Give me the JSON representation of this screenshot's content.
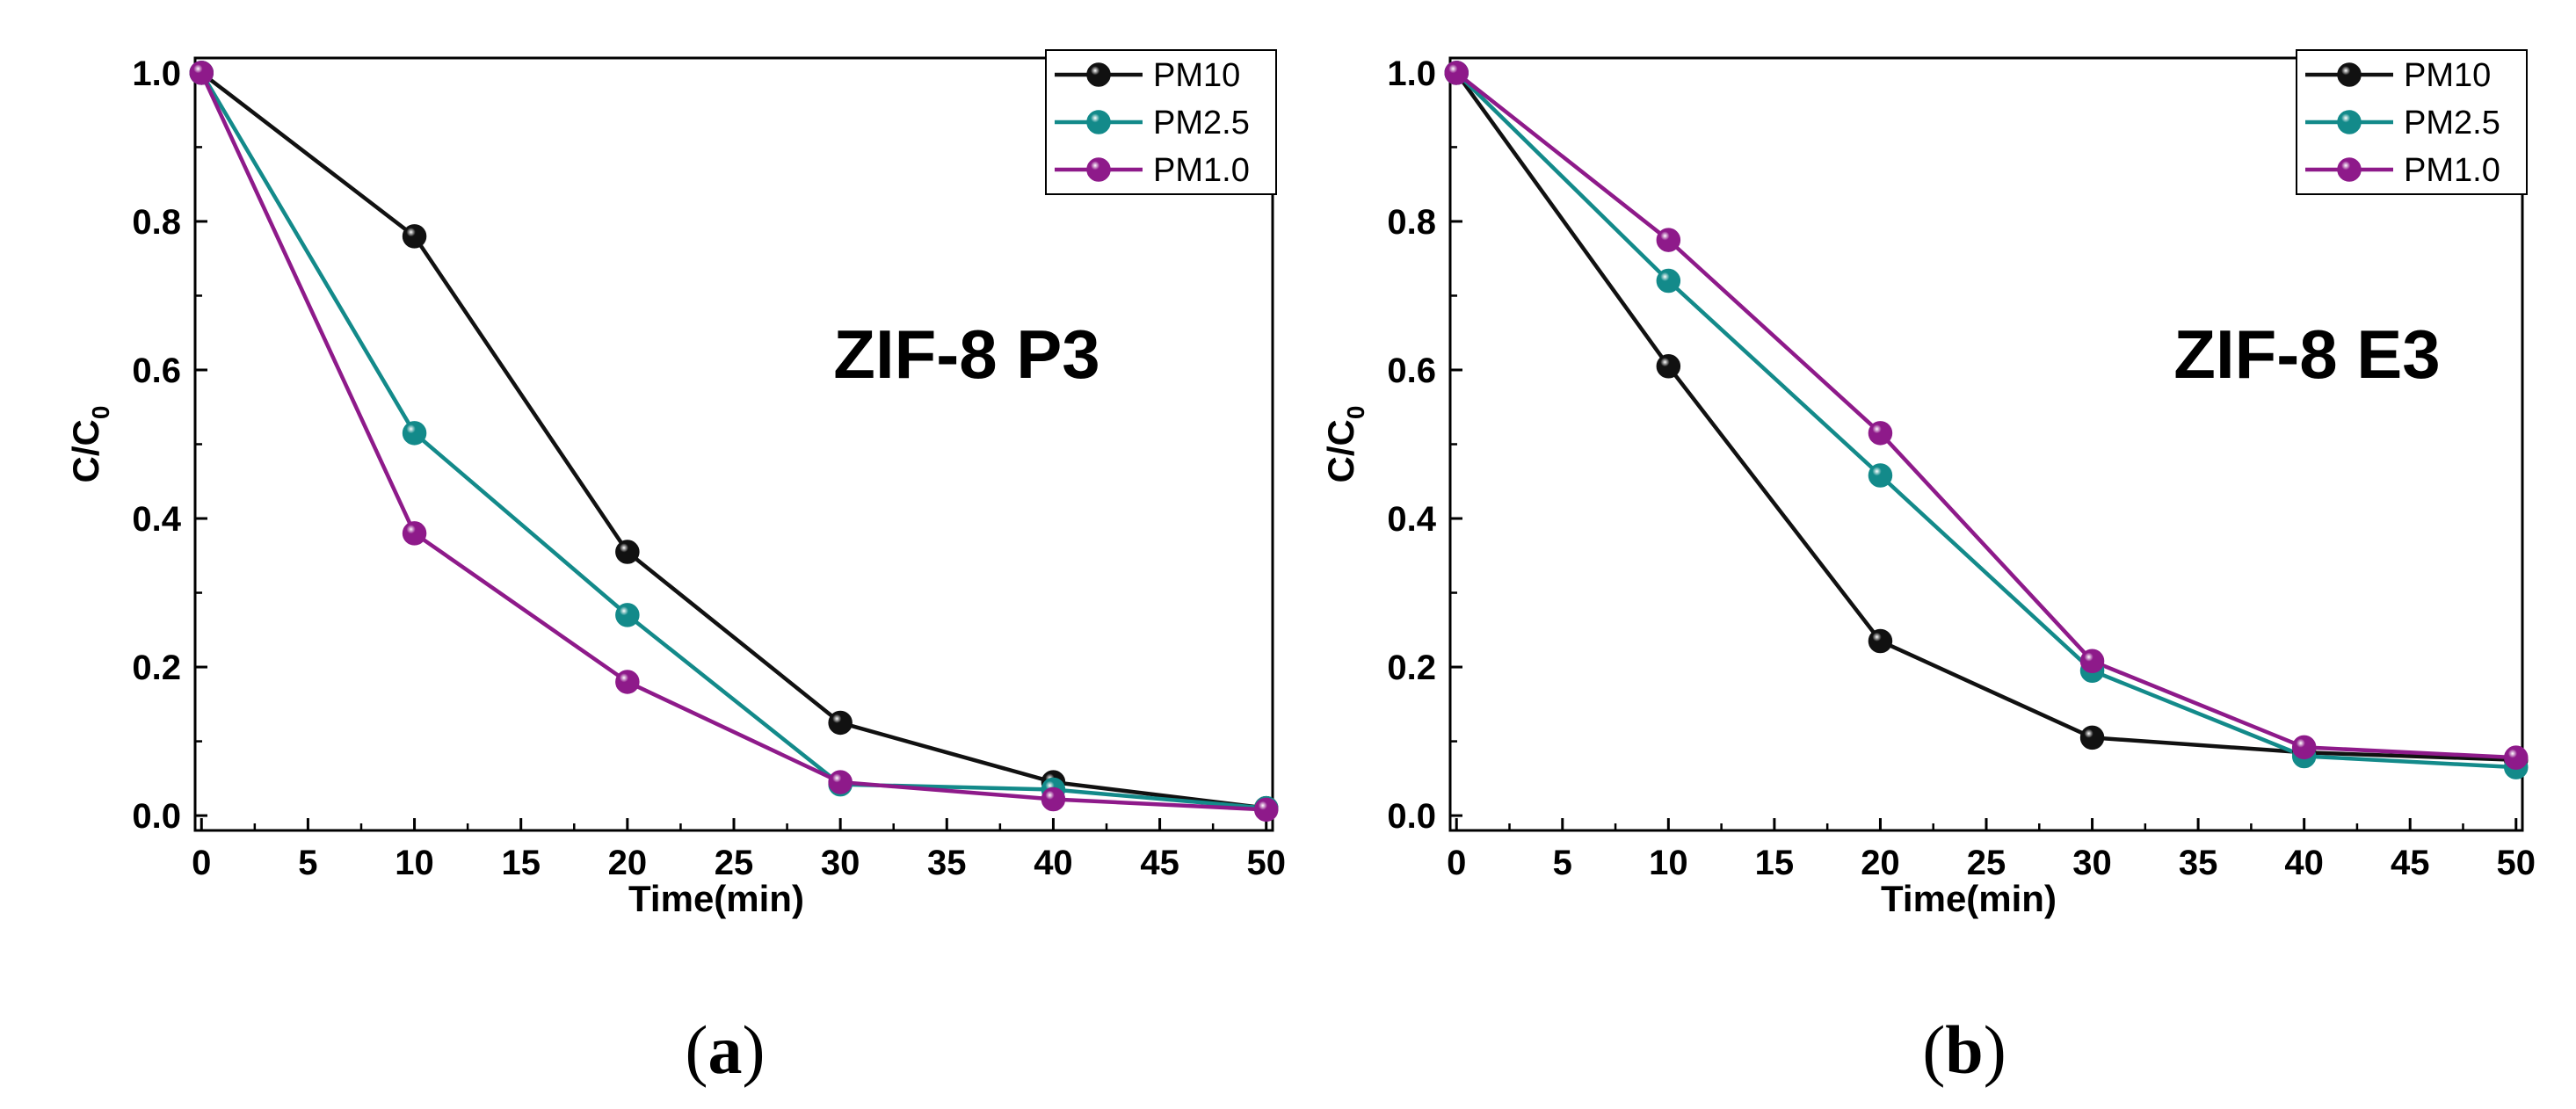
{
  "colors": {
    "PM10": "#111111",
    "PM2.5": "#138a8a",
    "PM1.0": "#8e1a8a"
  },
  "chart_data": [
    {
      "type": "line",
      "title": "ZIF-8 P3",
      "panel_label": "a",
      "xlabel": "Time(min)",
      "ylabel_main": "C/C",
      "ylabel_sub": "0",
      "xlim": [
        0,
        50
      ],
      "ylim": [
        0,
        1.0
      ],
      "xticks": [
        "0",
        "5",
        "10",
        "15",
        "20",
        "25",
        "30",
        "35",
        "40",
        "45",
        "50"
      ],
      "yticks": [
        "0.0",
        "0.2",
        "0.4",
        "0.6",
        "0.8",
        "1.0"
      ],
      "x": [
        0,
        10,
        20,
        30,
        40,
        50
      ],
      "legend_position": "top-right",
      "series": [
        {
          "name": "PM10",
          "values": [
            1.0,
            0.78,
            0.355,
            0.125,
            0.045,
            0.01
          ]
        },
        {
          "name": "PM2.5",
          "values": [
            1.0,
            0.515,
            0.27,
            0.042,
            0.035,
            0.01
          ]
        },
        {
          "name": "PM1.0",
          "values": [
            1.0,
            0.38,
            0.18,
            0.045,
            0.022,
            0.008
          ]
        }
      ]
    },
    {
      "type": "line",
      "title": "ZIF-8 E3",
      "panel_label": "b",
      "xlabel": "Time(min)",
      "ylabel_main": "C/C",
      "ylabel_sub": "0",
      "xlim": [
        0,
        50
      ],
      "ylim": [
        0,
        1.0
      ],
      "xticks": [
        "0",
        "5",
        "10",
        "15",
        "20",
        "25",
        "30",
        "35",
        "40",
        "45",
        "50"
      ],
      "yticks": [
        "0.0",
        "0.2",
        "0.4",
        "0.6",
        "0.8",
        "1.0"
      ],
      "x": [
        0,
        10,
        20,
        30,
        40,
        50
      ],
      "legend_position": "top-right",
      "series": [
        {
          "name": "PM10",
          "values": [
            1.0,
            0.605,
            0.235,
            0.105,
            0.085,
            0.075
          ]
        },
        {
          "name": "PM2.5",
          "values": [
            1.0,
            0.72,
            0.458,
            0.195,
            0.08,
            0.065
          ]
        },
        {
          "name": "PM1.0",
          "values": [
            1.0,
            0.775,
            0.515,
            0.208,
            0.092,
            0.078
          ]
        }
      ]
    }
  ]
}
